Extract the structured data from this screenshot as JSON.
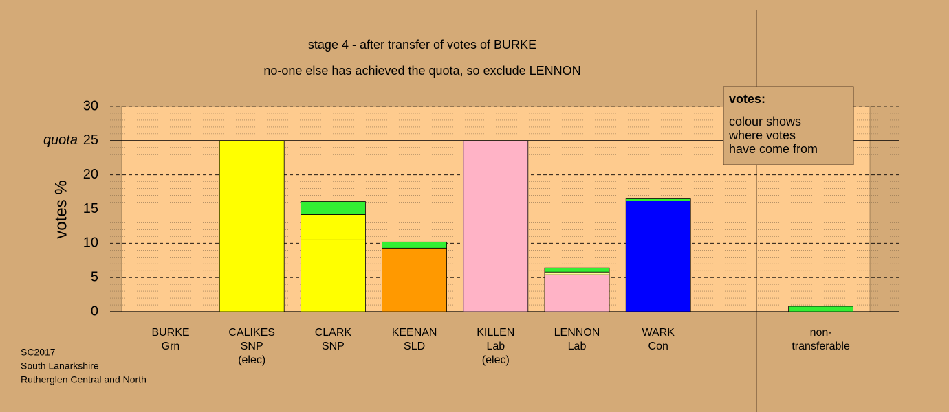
{
  "chart_data": {
    "type": "stacked-bar",
    "title": "stage 4 - after transfer of votes of BURKE",
    "subtitle": "no-one else has achieved the quota, so exclude LENNON",
    "y_label": "votes %",
    "quota": 25,
    "quota_label": "quota",
    "categories": [
      [
        "BURKE",
        "Grn"
      ],
      [
        "CALIKES",
        "SNP",
        "(elec)"
      ],
      [
        "CLARK",
        "SNP"
      ],
      [
        "KEENAN",
        "SLD"
      ],
      [
        "KILLEN",
        "Lab",
        "(elec)"
      ],
      [
        "LENNON",
        "Lab"
      ],
      [
        "WARK",
        "Con"
      ],
      null,
      [
        "non-",
        "transferable"
      ]
    ],
    "stacks": [
      [
        {
          "color": "#33ee33",
          "value": 0
        }
      ],
      [
        {
          "color": "#ffff00",
          "value": 25
        }
      ],
      [
        {
          "color": "#ffff00",
          "value": 10.5
        },
        {
          "color": "#ffff00",
          "value": 3.7
        },
        {
          "color": "#33ee33",
          "value": 1.9
        }
      ],
      [
        {
          "color": "#ff9900",
          "value": 9.3
        },
        {
          "color": "#33ee33",
          "value": 0.9
        }
      ],
      [
        {
          "color": "#ffb3c6",
          "value": 25
        }
      ],
      [
        {
          "color": "#ffb3c6",
          "value": 5.4
        },
        {
          "color": "#ffff99",
          "value": 0.4
        },
        {
          "color": "#33ee33",
          "value": 0.6
        }
      ],
      [
        {
          "color": "#0000ff",
          "value": 16.2
        },
        {
          "color": "#33ee33",
          "value": 0.3
        }
      ],
      [],
      [
        {
          "color": "#33ee33",
          "value": 0.8
        }
      ]
    ],
    "ylim": [
      0,
      30
    ],
    "yticks": [
      0,
      5,
      10,
      15,
      20,
      25,
      30
    ],
    "minor_step": 1,
    "grid": true,
    "info_box": {
      "title": "votes:",
      "lines": [
        "colour shows",
        "where votes",
        "have come from"
      ]
    },
    "footnote": [
      "SC2017",
      "South Lanarkshire",
      "Rutherglen Central and North"
    ]
  }
}
